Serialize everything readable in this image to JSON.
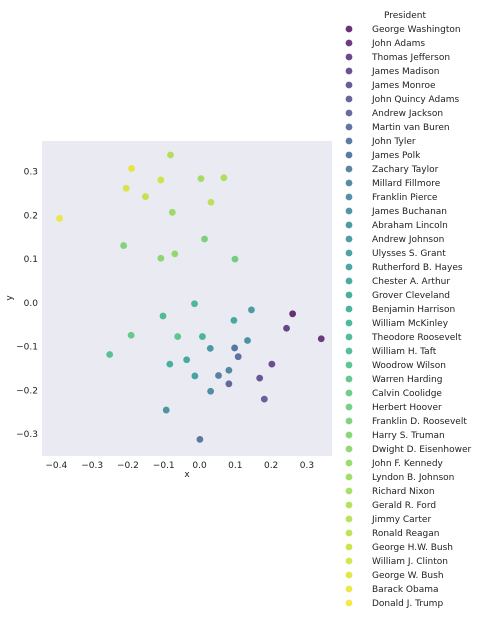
{
  "chart_data": {
    "type": "scatter",
    "xlabel": "x",
    "ylabel": "y",
    "xlim": [
      -0.44,
      0.37
    ],
    "ylim": [
      -0.35,
      0.37
    ],
    "xticks": [
      -0.4,
      -0.3,
      -0.2,
      -0.1,
      0.0,
      0.1,
      0.2,
      0.3
    ],
    "xtick_labels": [
      "−0.4",
      "−0.3",
      "−0.2",
      "−0.1",
      "0.0",
      "0.1",
      "0.2",
      "0.3"
    ],
    "yticks": [
      -0.3,
      -0.2,
      -0.1,
      0.0,
      0.1,
      0.2,
      0.3
    ],
    "ytick_labels": [
      "−0.3",
      "−0.2",
      "−0.1",
      "0.0",
      "0.1",
      "0.2",
      "0.3"
    ],
    "grid": false,
    "background": "#eaeaf2",
    "legend_title": "President",
    "legend_placement": "right, outside",
    "series": [
      {
        "name": "George Washington",
        "color": "#440154",
        "x": 0.26,
        "y": -0.025
      },
      {
        "name": "John Adams",
        "color": "#470e61",
        "x": 0.34,
        "y": -0.082
      },
      {
        "name": "Thomas Jefferson",
        "color": "#481b6d",
        "x": 0.243,
        "y": -0.058
      },
      {
        "name": "James Madison",
        "color": "#482777",
        "x": 0.202,
        "y": -0.14
      },
      {
        "name": "James Monroe",
        "color": "#46327e",
        "x": 0.168,
        "y": -0.172
      },
      {
        "name": "John Quincy Adams",
        "color": "#433e85",
        "x": 0.181,
        "y": -0.22
      },
      {
        "name": "Andrew Jackson",
        "color": "#3f4889",
        "x": 0.082,
        "y": -0.185
      },
      {
        "name": "Martin van Buren",
        "color": "#3b528b",
        "x": 0.108,
        "y": -0.123
      },
      {
        "name": "John Tyler",
        "color": "#365c8d",
        "x": 0.001,
        "y": -0.312
      },
      {
        "name": "James Polk",
        "color": "#325a8e",
        "x": 0.098,
        "y": -0.103
      },
      {
        "name": "Zachary Taylor",
        "color": "#31668e",
        "x": 0.053,
        "y": -0.166
      },
      {
        "name": "Millard Fillmore",
        "color": "#2e6f8e",
        "x": 0.082,
        "y": -0.154
      },
      {
        "name": "Franklin Pierce",
        "color": "#2b778e",
        "x": 0.031,
        "y": -0.202
      },
      {
        "name": "James Buchanan",
        "color": "#29798e",
        "x": 0.134,
        "y": -0.086
      },
      {
        "name": "Abraham Lincoln",
        "color": "#27808e",
        "x": -0.093,
        "y": -0.245
      },
      {
        "name": "Andrew Johnson",
        "color": "#25838e",
        "x": 0.03,
        "y": -0.104
      },
      {
        "name": "Ulysses S. Grant",
        "color": "#23898e",
        "x": 0.145,
        "y": -0.016
      },
      {
        "name": "Rutherford B. Hayes",
        "color": "#21908d",
        "x": -0.013,
        "y": -0.167
      },
      {
        "name": "Chester A. Arthur",
        "color": "#1f968b",
        "x": 0.096,
        "y": -0.04
      },
      {
        "name": "Grover Cleveland",
        "color": "#1f9a8a",
        "x": -0.036,
        "y": -0.13
      },
      {
        "name": "Benjamin Harrison",
        "color": "#1fa088",
        "x": -0.083,
        "y": -0.14
      },
      {
        "name": "William McKinley",
        "color": "#22a785",
        "x": 0.008,
        "y": -0.077
      },
      {
        "name": "Theodore Roosevelt",
        "color": "#26ad81",
        "x": -0.014,
        "y": -0.002
      },
      {
        "name": "William H. Taft",
        "color": "#29af7f",
        "x": -0.102,
        "y": -0.03
      },
      {
        "name": "Woodrow Wilson",
        "color": "#35b779",
        "x": -0.251,
        "y": -0.118
      },
      {
        "name": "Warren Harding",
        "color": "#3fbc73",
        "x": -0.061,
        "y": -0.077
      },
      {
        "name": "Calvin Coolidge",
        "color": "#4ac16d",
        "x": -0.191,
        "y": -0.074
      },
      {
        "name": "Herbert Hoover",
        "color": "#55c667",
        "x": 0.099,
        "y": 0.1
      },
      {
        "name": "Franklin D. Roosevelt",
        "color": "#60ca60",
        "x": 0.014,
        "y": 0.146
      },
      {
        "name": "Harry S. Truman",
        "color": "#6ccd5a",
        "x": -0.212,
        "y": 0.131
      },
      {
        "name": "Dwight D. Eisenhower",
        "color": "#75d054",
        "x": -0.108,
        "y": 0.102
      },
      {
        "name": "John F. Kennedy",
        "color": "#7fd34e",
        "x": -0.069,
        "y": 0.112
      },
      {
        "name": "Lyndon B. Johnson",
        "color": "#8bd646",
        "x": -0.076,
        "y": 0.207
      },
      {
        "name": "Richard Nixon",
        "color": "#95d840",
        "x": 0.004,
        "y": 0.284
      },
      {
        "name": "Gerald R. Ford",
        "color": "#a2da37",
        "x": 0.068,
        "y": 0.286
      },
      {
        "name": "Jimmy Carter",
        "color": "#a8db34",
        "x": -0.081,
        "y": 0.338
      },
      {
        "name": "Ronald Reagan",
        "color": "#b0dd2f",
        "x": 0.032,
        "y": 0.23
      },
      {
        "name": "George H.W. Bush",
        "color": "#bddf26",
        "x": -0.151,
        "y": 0.243
      },
      {
        "name": "William J. Clinton",
        "color": "#cae11f",
        "x": -0.108,
        "y": 0.281
      },
      {
        "name": "George W. Bush",
        "color": "#d8e219",
        "x": -0.205,
        "y": 0.262
      },
      {
        "name": "Barack Obama",
        "color": "#e5e419",
        "x": -0.19,
        "y": 0.307
      },
      {
        "name": "Donald J. Trump",
        "color": "#eee51c",
        "x": -0.391,
        "y": 0.193
      }
    ]
  }
}
